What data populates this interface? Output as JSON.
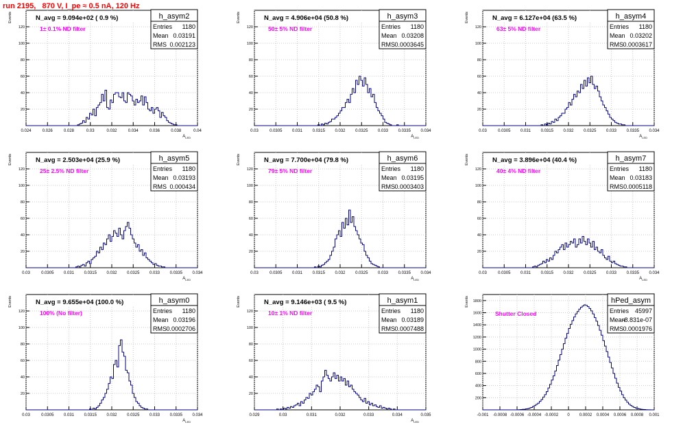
{
  "page_title": "run 2195,   870 V, I_pe ≈ 0.5 nA, 120 Hz",
  "colors": {
    "hist_line": "#000080",
    "grid": "#c8c8c8",
    "annotation": "#ff00ff",
    "title": "#ff0000"
  },
  "stats_labels": {
    "entries": "Entries",
    "mean": "Mean",
    "rms": "RMS"
  },
  "chart_data": [
    {
      "type": "bar",
      "name": "h_asym2",
      "n_avg_label": "N_avg = 9.094e+02 ( 0.9 %)",
      "annotation": "1± 0.1% ND filter",
      "xlabel": "A_LED",
      "ylabel": "Events",
      "stats": {
        "entries": "1180",
        "mean": "0.03191",
        "rms": "0.002123"
      },
      "xlim": [
        0.024,
        0.04
      ],
      "ylim": [
        0,
        140
      ],
      "xticks": [
        0.024,
        0.026,
        0.028,
        0.03,
        0.032,
        0.034,
        0.036,
        0.038,
        0.04
      ],
      "xtick_labels": [
        "0.024",
        "0.026",
        "0.028",
        "0.03",
        "0.032",
        "0.034",
        "0.036",
        "0.038",
        "0.04"
      ],
      "yticks": [
        20,
        40,
        60,
        80,
        100,
        120
      ],
      "values": [
        0,
        0,
        0,
        0,
        0,
        0,
        0,
        0,
        0,
        0,
        0,
        0,
        0,
        0,
        0,
        0,
        0,
        0,
        0,
        0,
        0,
        0,
        0,
        0,
        0,
        0,
        0,
        0,
        0,
        0,
        1,
        2,
        3,
        6,
        4,
        10,
        8,
        15,
        13,
        20,
        12,
        22,
        25,
        28,
        38,
        30,
        43,
        22,
        20,
        31,
        28,
        38,
        40,
        40,
        35,
        34,
        40,
        30,
        28,
        40,
        38,
        36,
        30,
        25,
        32,
        28,
        30,
        36,
        25,
        35,
        28,
        20,
        18,
        22,
        15,
        20,
        22,
        18,
        10,
        16,
        12,
        10,
        6,
        4,
        3,
        2,
        1,
        1,
        0,
        0,
        0,
        0,
        0,
        0,
        0,
        0,
        0,
        0,
        0,
        0
      ]
    },
    {
      "type": "bar",
      "name": "h_asym3",
      "n_avg_label": "N_avg = 4.906e+04 (50.8 %)",
      "annotation": "50± 5% ND filter",
      "xlabel": "A_LED",
      "ylabel": "Events",
      "stats": {
        "entries": "1180",
        "mean": "0.03208",
        "rms": "0.0003645"
      },
      "xlim": [
        0.03,
        0.034
      ],
      "ylim": [
        0,
        140
      ],
      "xticks": [
        0.03,
        0.0305,
        0.031,
        0.0315,
        0.032,
        0.0325,
        0.033,
        0.0335,
        0.034
      ],
      "xtick_labels": [
        "0.03",
        "0.0305",
        "0.031",
        "0.0315",
        "0.032",
        "0.0325",
        "0.033",
        "0.0335",
        "0.034"
      ],
      "yticks": [
        20,
        40,
        60,
        80,
        100,
        120
      ],
      "values": [
        0,
        0,
        0,
        0,
        0,
        0,
        0,
        0,
        0,
        0,
        0,
        0,
        0,
        0,
        0,
        0,
        0,
        0,
        0,
        0,
        0,
        0,
        0,
        0,
        0,
        0,
        0,
        0,
        0,
        0,
        0,
        0,
        0,
        0,
        0,
        0,
        0,
        1,
        0,
        2,
        1,
        3,
        2,
        4,
        5,
        8,
        8,
        10,
        12,
        15,
        18,
        22,
        22,
        28,
        32,
        28,
        38,
        45,
        40,
        55,
        50,
        60,
        55,
        48,
        58,
        50,
        40,
        45,
        35,
        38,
        28,
        22,
        18,
        15,
        12,
        8,
        4,
        3,
        2,
        1,
        0,
        0,
        0,
        1,
        0,
        0,
        0,
        0,
        0,
        0,
        0,
        0,
        0,
        0,
        0,
        0,
        0,
        0,
        0,
        0
      ]
    },
    {
      "type": "bar",
      "name": "h_asym4",
      "n_avg_label": "N_avg = 6.127e+04 (63.5 %)",
      "annotation": "63± 5% ND filter",
      "xlabel": "A_LED",
      "ylabel": "Events",
      "stats": {
        "entries": "1180",
        "mean": "0.03202",
        "rms": "0.0003617"
      },
      "xlim": [
        0.03,
        0.034
      ],
      "ylim": [
        0,
        140
      ],
      "xticks": [
        0.03,
        0.0305,
        0.031,
        0.0315,
        0.032,
        0.0325,
        0.033,
        0.0335,
        0.034
      ],
      "xtick_labels": [
        "0.03",
        "0.0305",
        "0.031",
        "0.0315",
        "0.032",
        "0.0325",
        "0.033",
        "0.0335",
        "0.034"
      ],
      "yticks": [
        20,
        40,
        60,
        80,
        100,
        120
      ],
      "values": [
        0,
        0,
        0,
        0,
        0,
        0,
        0,
        0,
        0,
        0,
        0,
        0,
        0,
        0,
        0,
        0,
        0,
        0,
        0,
        0,
        0,
        0,
        0,
        0,
        0,
        0,
        0,
        0,
        0,
        0,
        0,
        0,
        0,
        0,
        1,
        0,
        2,
        1,
        3,
        2,
        5,
        4,
        8,
        6,
        10,
        12,
        15,
        15,
        20,
        22,
        28,
        25,
        32,
        38,
        35,
        42,
        40,
        50,
        45,
        55,
        48,
        58,
        52,
        60,
        50,
        45,
        48,
        42,
        35,
        30,
        25,
        22,
        18,
        14,
        10,
        8,
        6,
        4,
        3,
        2,
        2,
        1,
        1,
        0,
        0,
        0,
        0,
        0,
        0,
        0,
        0,
        0,
        0,
        0,
        0,
        0,
        0,
        0,
        0,
        0
      ]
    },
    {
      "type": "bar",
      "name": "h_asym5",
      "n_avg_label": "N_avg = 2.503e+04 (25.9 %)",
      "annotation": "25± 2.5% ND filter",
      "xlabel": "A_LED",
      "ylabel": "Events",
      "stats": {
        "entries": "1180",
        "mean": "0.03193",
        "rms": "0.000434"
      },
      "xlim": [
        0.03,
        0.034
      ],
      "ylim": [
        0,
        140
      ],
      "xticks": [
        0.03,
        0.0305,
        0.031,
        0.0315,
        0.032,
        0.0325,
        0.033,
        0.0335,
        0.034
      ],
      "xtick_labels": [
        "0.03",
        "0.0305",
        "0.031",
        "0.0315",
        "0.032",
        "0.0325",
        "0.033",
        "0.0335",
        "0.034"
      ],
      "yticks": [
        20,
        40,
        60,
        80,
        100,
        120
      ],
      "values": [
        0,
        0,
        0,
        0,
        0,
        0,
        0,
        0,
        0,
        0,
        0,
        0,
        0,
        0,
        0,
        0,
        0,
        0,
        0,
        0,
        0,
        0,
        0,
        0,
        0,
        0,
        0,
        0,
        0,
        1,
        2,
        1,
        3,
        4,
        2,
        6,
        8,
        5,
        10,
        12,
        14,
        20,
        18,
        25,
        22,
        30,
        28,
        35,
        40,
        32,
        38,
        45,
        42,
        38,
        48,
        40,
        35,
        45,
        50,
        55,
        48,
        40,
        35,
        30,
        25,
        28,
        20,
        22,
        15,
        18,
        12,
        10,
        8,
        6,
        4,
        5,
        3,
        2,
        2,
        1,
        1,
        0,
        0,
        0,
        0,
        0,
        0,
        0,
        0,
        0,
        0,
        0,
        0,
        0,
        0,
        0,
        0,
        0,
        0,
        0
      ]
    },
    {
      "type": "bar",
      "name": "h_asym6",
      "n_avg_label": "N_avg = 7.700e+04 (79.8 %)",
      "annotation": "79± 5% ND filter",
      "xlabel": "A_LED",
      "ylabel": "Events",
      "stats": {
        "entries": "1180",
        "mean": "0.03195",
        "rms": "0.0003403"
      },
      "xlim": [
        0.03,
        0.034
      ],
      "ylim": [
        0,
        140
      ],
      "xticks": [
        0.03,
        0.0305,
        0.031,
        0.0315,
        0.032,
        0.0325,
        0.033,
        0.0335,
        0.034
      ],
      "xtick_labels": [
        "0.03",
        "0.0305",
        "0.031",
        "0.0315",
        "0.032",
        "0.0325",
        "0.033",
        "0.0335",
        "0.034"
      ],
      "yticks": [
        20,
        40,
        60,
        80,
        100,
        120
      ],
      "values": [
        0,
        0,
        0,
        0,
        0,
        0,
        0,
        0,
        0,
        0,
        0,
        0,
        0,
        0,
        0,
        0,
        0,
        0,
        0,
        0,
        0,
        0,
        0,
        0,
        0,
        0,
        0,
        0,
        0,
        0,
        0,
        0,
        0,
        0,
        0,
        1,
        0,
        2,
        1,
        3,
        4,
        6,
        8,
        10,
        15,
        20,
        25,
        35,
        40,
        45,
        38,
        55,
        48,
        60,
        52,
        70,
        55,
        62,
        50,
        45,
        40,
        35,
        30,
        28,
        20,
        15,
        12,
        8,
        5,
        4,
        3,
        2,
        1,
        0,
        0,
        0,
        0,
        0,
        0,
        0,
        0,
        0,
        0,
        0,
        0,
        0,
        0,
        0,
        0,
        0,
        0,
        0,
        0,
        0,
        0,
        0,
        0,
        0,
        0,
        0
      ]
    },
    {
      "type": "bar",
      "name": "h_asym7",
      "n_avg_label": "N_avg = 3.896e+04 (40.4 %)",
      "annotation": "40± 4% ND filter",
      "xlabel": "A_LED",
      "ylabel": "Events",
      "stats": {
        "entries": "1180",
        "mean": "0.03183",
        "rms": "0.0005118"
      },
      "xlim": [
        0.03,
        0.034
      ],
      "ylim": [
        0,
        140
      ],
      "xticks": [
        0.03,
        0.0305,
        0.031,
        0.0315,
        0.032,
        0.0325,
        0.033,
        0.0335,
        0.034
      ],
      "xtick_labels": [
        "0.03",
        "0.0305",
        "0.031",
        "0.0315",
        "0.032",
        "0.0325",
        "0.033",
        "0.0335",
        "0.034"
      ],
      "yticks": [
        20,
        40,
        60,
        80,
        100,
        120
      ],
      "values": [
        0,
        0,
        0,
        0,
        0,
        0,
        0,
        0,
        0,
        0,
        0,
        0,
        0,
        0,
        0,
        0,
        0,
        0,
        0,
        0,
        0,
        0,
        0,
        0,
        0,
        0,
        0,
        0,
        0,
        1,
        2,
        1,
        3,
        4,
        5,
        8,
        6,
        10,
        8,
        12,
        10,
        15,
        20,
        18,
        22,
        25,
        28,
        22,
        30,
        25,
        28,
        32,
        30,
        35,
        25,
        28,
        35,
        30,
        38,
        32,
        28,
        35,
        30,
        25,
        32,
        22,
        25,
        20,
        18,
        22,
        15,
        12,
        10,
        14,
        8,
        6,
        8,
        5,
        4,
        3,
        2,
        2,
        1,
        1,
        0,
        0,
        0,
        0,
        0,
        0,
        0,
        0,
        0,
        0,
        0,
        0,
        0,
        0,
        0,
        0
      ]
    },
    {
      "type": "bar",
      "name": "h_asym0",
      "n_avg_label": "N_avg = 9.655e+04 (100.0 %)",
      "annotation": "100% (No filter)",
      "xlabel": "A_LED",
      "ylabel": "Events",
      "stats": {
        "entries": "1180",
        "mean": "0.03196",
        "rms": "0.0002706"
      },
      "xlim": [
        0.03,
        0.034
      ],
      "ylim": [
        0,
        140
      ],
      "xticks": [
        0.03,
        0.0305,
        0.031,
        0.0315,
        0.032,
        0.0325,
        0.033,
        0.0335,
        0.034
      ],
      "xtick_labels": [
        "0.03",
        "0.0305",
        "0.031",
        "0.0315",
        "0.032",
        "0.0325",
        "0.033",
        "0.0335",
        "0.034"
      ],
      "yticks": [
        20,
        40,
        60,
        80,
        100,
        120
      ],
      "values": [
        0,
        0,
        0,
        0,
        0,
        0,
        0,
        0,
        0,
        0,
        0,
        0,
        0,
        0,
        0,
        0,
        0,
        0,
        0,
        0,
        0,
        0,
        0,
        0,
        0,
        0,
        0,
        0,
        0,
        0,
        0,
        0,
        0,
        0,
        0,
        0,
        0,
        1,
        0,
        2,
        1,
        3,
        5,
        8,
        12,
        15,
        20,
        25,
        32,
        40,
        38,
        55,
        60,
        52,
        78,
        85,
        70,
        65,
        48,
        45,
        35,
        30,
        20,
        15,
        10,
        8,
        5,
        3,
        2,
        1,
        1,
        0,
        0,
        0,
        0,
        0,
        0,
        0,
        0,
        0,
        0,
        0,
        0,
        0,
        0,
        0,
        0,
        0,
        0,
        0,
        0,
        0,
        0,
        0,
        0,
        0,
        0,
        0,
        0,
        0
      ]
    },
    {
      "type": "bar",
      "name": "h_asym1",
      "n_avg_label": "N_avg = 9.146e+03 ( 9.5 %)",
      "annotation": "10± 1% ND filter",
      "xlabel": "A_LED",
      "ylabel": "Events",
      "stats": {
        "entries": "1180",
        "mean": "0.03189",
        "rms": "0.0007488"
      },
      "xlim": [
        0.029,
        0.035
      ],
      "ylim": [
        0,
        140
      ],
      "xticks": [
        0.029,
        0.03,
        0.031,
        0.032,
        0.033,
        0.034,
        0.035
      ],
      "xtick_labels": [
        "0.029",
        "0.03",
        "0.031",
        "0.032",
        "0.033",
        "0.034",
        "0.035"
      ],
      "yticks": [
        20,
        40,
        60,
        80,
        100,
        120
      ],
      "values": [
        0,
        0,
        0,
        0,
        0,
        0,
        0,
        0,
        0,
        0,
        0,
        0,
        0,
        1,
        0,
        1,
        0,
        2,
        1,
        3,
        2,
        4,
        3,
        5,
        6,
        8,
        5,
        10,
        8,
        12,
        15,
        14,
        20,
        18,
        22,
        25,
        30,
        28,
        22,
        35,
        40,
        48,
        42,
        38,
        35,
        40,
        45,
        38,
        42,
        35,
        40,
        35,
        38,
        30,
        35,
        28,
        30,
        25,
        22,
        20,
        18,
        15,
        12,
        10,
        14,
        8,
        10,
        6,
        8,
        5,
        6,
        4,
        3,
        5,
        2,
        3,
        2,
        1,
        2,
        1,
        0,
        1,
        0,
        0,
        0,
        0,
        0,
        0,
        0,
        0,
        0,
        0,
        0,
        0,
        0,
        0,
        0,
        0,
        0,
        0
      ]
    },
    {
      "type": "bar",
      "name": "hPed_asym",
      "n_avg_label": "",
      "annotation": "Shutter Closed",
      "xlabel": "",
      "ylabel": "Events",
      "stats": {
        "entries": "45997",
        "mean": "-8.831e-07",
        "rms": "0.0001976"
      },
      "xlim": [
        -0.001,
        0.001
      ],
      "ylim": [
        0,
        1900
      ],
      "xticks": [
        -0.001,
        -0.0008,
        -0.0006,
        -0.0004,
        -0.0002,
        0,
        0.0002,
        0.0004,
        0.0006,
        0.0008,
        0.001
      ],
      "xtick_labels": [
        "-0.001",
        "-0.0008",
        "-0.0006",
        "-0.0004",
        "-0.0002",
        "0",
        "0.0002",
        "0.0004",
        "0.0006",
        "0.0008",
        "0.001"
      ],
      "yticks": [
        200,
        400,
        600,
        800,
        1000,
        1200,
        1400,
        1600,
        1800
      ],
      "values": [
        0,
        0,
        0,
        0,
        0,
        0,
        0,
        0,
        0,
        0,
        0,
        0,
        0,
        0,
        0,
        0,
        0,
        0,
        0,
        0,
        2,
        3,
        5,
        8,
        10,
        15,
        20,
        30,
        40,
        55,
        70,
        90,
        110,
        140,
        170,
        210,
        250,
        300,
        360,
        420,
        490,
        560,
        640,
        730,
        820,
        910,
        1000,
        1090,
        1180,
        1260,
        1340,
        1410,
        1470,
        1530,
        1580,
        1620,
        1660,
        1690,
        1710,
        1730,
        1720,
        1700,
        1670,
        1630,
        1580,
        1520,
        1460,
        1390,
        1310,
        1230,
        1140,
        1050,
        960,
        870,
        780,
        690,
        600,
        520,
        440,
        370,
        310,
        250,
        200,
        160,
        125,
        95,
        72,
        55,
        40,
        30,
        22,
        15,
        10,
        7,
        5,
        3,
        2,
        1,
        0,
        0
      ]
    }
  ]
}
